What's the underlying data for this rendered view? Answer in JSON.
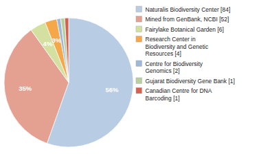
{
  "chart_data": {
    "type": "pie",
    "categories": [
      "Naturalis Biodiversity Center [84]",
      "Mined from GenBank, NCBI [52]",
      "Fairylake Botanical Garden [6]",
      "Research Center in\nBiodiversity and Genetic\nResources [4]",
      "Centre for Biodiversity\nGenomics [2]",
      "Gujarat Biodiversity Gene Bank [1]",
      "Canadian Centre for DNA\nBarcoding [1]"
    ],
    "values": [
      56,
      35,
      4,
      3,
      1,
      1,
      1
    ],
    "value_labels": [
      "56%",
      "35%",
      "4%",
      "3%",
      null,
      null,
      null
    ],
    "data_labels": true,
    "colors": [
      "#b8cce4",
      "#e4a090",
      "#d4e0a0",
      "#f5a84a",
      "#a0b8d8",
      "#b8d0a0",
      "#d46050"
    ],
    "legend": "right"
  }
}
